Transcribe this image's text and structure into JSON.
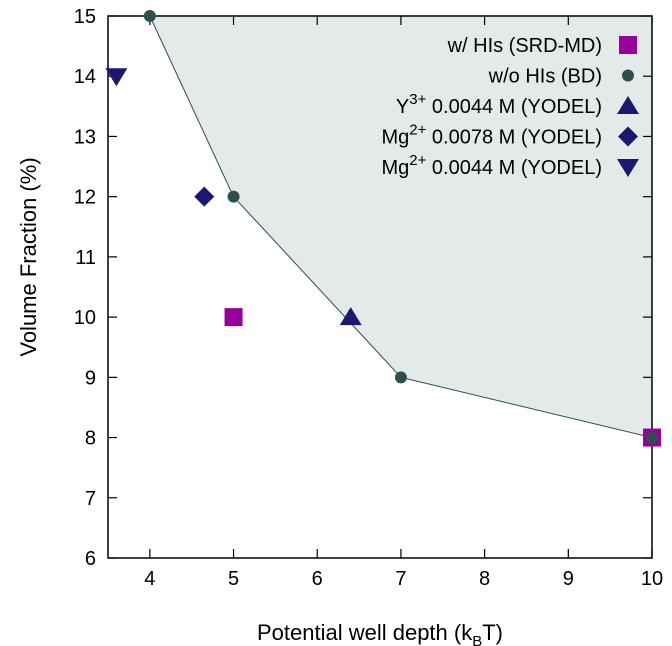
{
  "chart_data": {
    "type": "scatter",
    "xlabel": {
      "main": "Potential well depth (k",
      "sub": "B",
      "tail": "T)"
    },
    "ylabel": "Volume Fraction (%)",
    "xlim": [
      3.5,
      10
    ],
    "ylim": [
      6,
      15
    ],
    "x_ticks": [
      "4",
      "5",
      "6",
      "7",
      "8",
      "9",
      "10"
    ],
    "y_ticks": [
      "6",
      "7",
      "8",
      "9",
      "10",
      "11",
      "12",
      "13",
      "14",
      "15"
    ],
    "shaded_region": true,
    "colors": {
      "srd": "#990099",
      "bd": "#2f4f4f",
      "yodel": "#191970",
      "fill": "#e4eaea",
      "boundary": "#2f4f4f"
    },
    "series": [
      {
        "name": "w/ HIs (SRD-MD)",
        "marker": "square",
        "points": [
          [
            5,
            10
          ],
          [
            10,
            8
          ]
        ]
      },
      {
        "name": "w/o HIs (BD)",
        "marker": "circle",
        "line": true,
        "points": [
          [
            4,
            15
          ],
          [
            5,
            12
          ],
          [
            7,
            9
          ],
          [
            10,
            8
          ]
        ]
      },
      {
        "name_parts": [
          "Y",
          "3+",
          " 0.0044 M (YODEL)"
        ],
        "marker": "triangle-up",
        "points": [
          [
            6.4,
            10
          ]
        ]
      },
      {
        "name_parts": [
          "Mg",
          "2+",
          " 0.0078 M (YODEL)"
        ],
        "marker": "diamond",
        "points": [
          [
            4.65,
            12
          ]
        ]
      },
      {
        "name_parts": [
          "Mg",
          "2+",
          " 0.0044 M (YODEL)"
        ],
        "marker": "triangle-down",
        "points": [
          [
            3.6,
            14
          ]
        ]
      }
    ]
  }
}
